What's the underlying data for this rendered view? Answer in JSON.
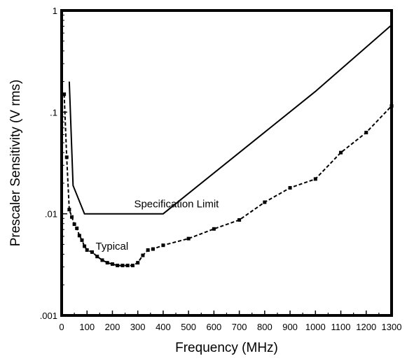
{
  "chart_data": {
    "type": "line",
    "title": "",
    "xlabel": "Frequency (MHz)",
    "ylabel": "Prescaler Sensitivity (V rms)",
    "xlim": [
      0,
      1300
    ],
    "ylim": [
      0.001,
      1
    ],
    "yscale": "log",
    "grid": false,
    "x_ticks": [
      "0",
      "100",
      "200",
      "300",
      "400",
      "500",
      "600",
      "700",
      "800",
      "900",
      "1000",
      "1100",
      "1200",
      "1300"
    ],
    "y_ticks": [
      {
        "value": 0.001,
        "label": ".001"
      },
      {
        "value": 0.01,
        "label": ".01"
      },
      {
        "value": 0.1,
        "label": ".1"
      },
      {
        "value": 1,
        "label": "1"
      }
    ],
    "series": [
      {
        "name": "Specification Limit",
        "style": "solid",
        "marker": "none",
        "color": "#000000",
        "x": [
          30,
          45,
          90,
          400,
          1000,
          1300
        ],
        "y": [
          0.2,
          0.019,
          0.01,
          0.01,
          0.16,
          0.72
        ]
      },
      {
        "name": "Typical",
        "style": "dashed",
        "marker": "square",
        "color": "#000000",
        "x": [
          10,
          20,
          30,
          40,
          50,
          60,
          70,
          80,
          90,
          100,
          120,
          140,
          160,
          180,
          200,
          220,
          240,
          260,
          280,
          300,
          320,
          340,
          360,
          400,
          500,
          600,
          700,
          800,
          900,
          1000,
          1100,
          1200,
          1300
        ],
        "y": [
          0.15,
          0.036,
          0.011,
          0.0093,
          0.0079,
          0.0072,
          0.0061,
          0.0055,
          0.0048,
          0.0044,
          0.0042,
          0.0038,
          0.0035,
          0.0033,
          0.0032,
          0.0031,
          0.0031,
          0.0031,
          0.0031,
          0.0033,
          0.0039,
          0.0044,
          0.0045,
          0.0049,
          0.0057,
          0.0071,
          0.0087,
          0.013,
          0.018,
          0.022,
          0.04,
          0.063,
          0.115
        ]
      }
    ],
    "annotations": [
      {
        "text": "Specification Limit",
        "x": 480,
        "y": 0.0125
      },
      {
        "text": "Typical",
        "x": 226,
        "y": 0.0048
      }
    ]
  }
}
